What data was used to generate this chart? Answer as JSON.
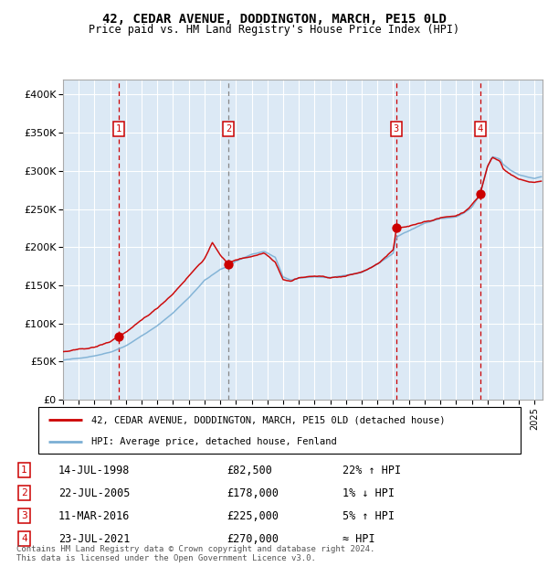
{
  "title1": "42, CEDAR AVENUE, DODDINGTON, MARCH, PE15 0LD",
  "title2": "Price paid vs. HM Land Registry's House Price Index (HPI)",
  "ylim": [
    0,
    420000
  ],
  "yticks": [
    0,
    50000,
    100000,
    150000,
    200000,
    250000,
    300000,
    350000,
    400000
  ],
  "ytick_labels": [
    "£0",
    "£50K",
    "£100K",
    "£150K",
    "£200K",
    "£250K",
    "£300K",
    "£350K",
    "£400K"
  ],
  "xlim_start": 1995.0,
  "xlim_end": 2025.5,
  "plot_bg": "#dce9f5",
  "grid_color": "#ffffff",
  "red_line_color": "#cc0000",
  "blue_line_color": "#7bafd4",
  "sale_marker_color": "#cc0000",
  "vline_color_red": "#cc0000",
  "sales": [
    {
      "num": 1,
      "year": 1998.54,
      "price": 82500,
      "label": "14-JUL-1998",
      "price_str": "£82,500",
      "pct": "22% ↑ HPI"
    },
    {
      "num": 2,
      "year": 2005.54,
      "price": 178000,
      "label": "22-JUL-2005",
      "price_str": "£178,000",
      "pct": "1% ↓ HPI"
    },
    {
      "num": 3,
      "year": 2016.19,
      "price": 225000,
      "label": "11-MAR-2016",
      "price_str": "£225,000",
      "pct": "5% ↑ HPI"
    },
    {
      "num": 4,
      "year": 2021.54,
      "price": 270000,
      "label": "23-JUL-2021",
      "price_str": "£270,000",
      "pct": "≈ HPI"
    }
  ],
  "legend_red": "42, CEDAR AVENUE, DODDINGTON, MARCH, PE15 0LD (detached house)",
  "legend_blue": "HPI: Average price, detached house, Fenland",
  "footnote": "Contains HM Land Registry data © Crown copyright and database right 2024.\nThis data is licensed under the Open Government Licence v3.0.",
  "box_color": "#cc0000",
  "box_text_color": "#cc0000",
  "hpi_anchors_x": [
    1995.0,
    1996.0,
    1997.0,
    1998.0,
    1999.0,
    2000.0,
    2001.0,
    2002.0,
    2003.0,
    2004.0,
    2005.0,
    2005.5,
    2006.0,
    2007.0,
    2007.8,
    2008.5,
    2009.0,
    2009.5,
    2010.0,
    2011.0,
    2012.0,
    2013.0,
    2014.0,
    2015.0,
    2016.0,
    2016.2,
    2017.0,
    2018.0,
    2019.0,
    2020.0,
    2020.5,
    2021.0,
    2021.5,
    2022.0,
    2022.3,
    2022.8,
    2023.0,
    2023.5,
    2024.0,
    2024.5,
    2025.0,
    2025.4
  ],
  "hpi_anchors_y": [
    52000,
    54000,
    58000,
    63000,
    72000,
    85000,
    98000,
    115000,
    135000,
    158000,
    172000,
    176000,
    183000,
    192000,
    196000,
    188000,
    162000,
    158000,
    160000,
    162000,
    161000,
    163000,
    167000,
    178000,
    192000,
    213000,
    222000,
    232000,
    238000,
    240000,
    245000,
    252000,
    268000,
    305000,
    318000,
    315000,
    308000,
    300000,
    295000,
    292000,
    290000,
    292000
  ],
  "prop_anchors_x": [
    1995.0,
    1996.0,
    1997.0,
    1998.0,
    1998.5,
    1999.0,
    2000.0,
    2001.0,
    2002.0,
    2003.0,
    2004.0,
    2004.5,
    2005.0,
    2005.5,
    2006.0,
    2007.0,
    2007.8,
    2008.5,
    2009.0,
    2009.5,
    2010.0,
    2011.0,
    2012.0,
    2013.0,
    2014.0,
    2015.0,
    2016.0,
    2016.2,
    2017.0,
    2018.0,
    2019.0,
    2020.0,
    2020.5,
    2021.0,
    2021.5,
    2022.0,
    2022.3,
    2022.8,
    2023.0,
    2023.5,
    2024.0,
    2024.5,
    2025.0,
    2025.4
  ],
  "prop_anchors_y": [
    63000,
    65000,
    68000,
    75000,
    82500,
    88000,
    102000,
    118000,
    138000,
    162000,
    185000,
    205000,
    190000,
    178000,
    183000,
    188000,
    193000,
    182000,
    160000,
    158000,
    163000,
    165000,
    163000,
    165000,
    170000,
    180000,
    198000,
    225000,
    228000,
    235000,
    240000,
    243000,
    248000,
    258000,
    270000,
    308000,
    320000,
    315000,
    305000,
    298000,
    292000,
    289000,
    288000,
    290000
  ]
}
